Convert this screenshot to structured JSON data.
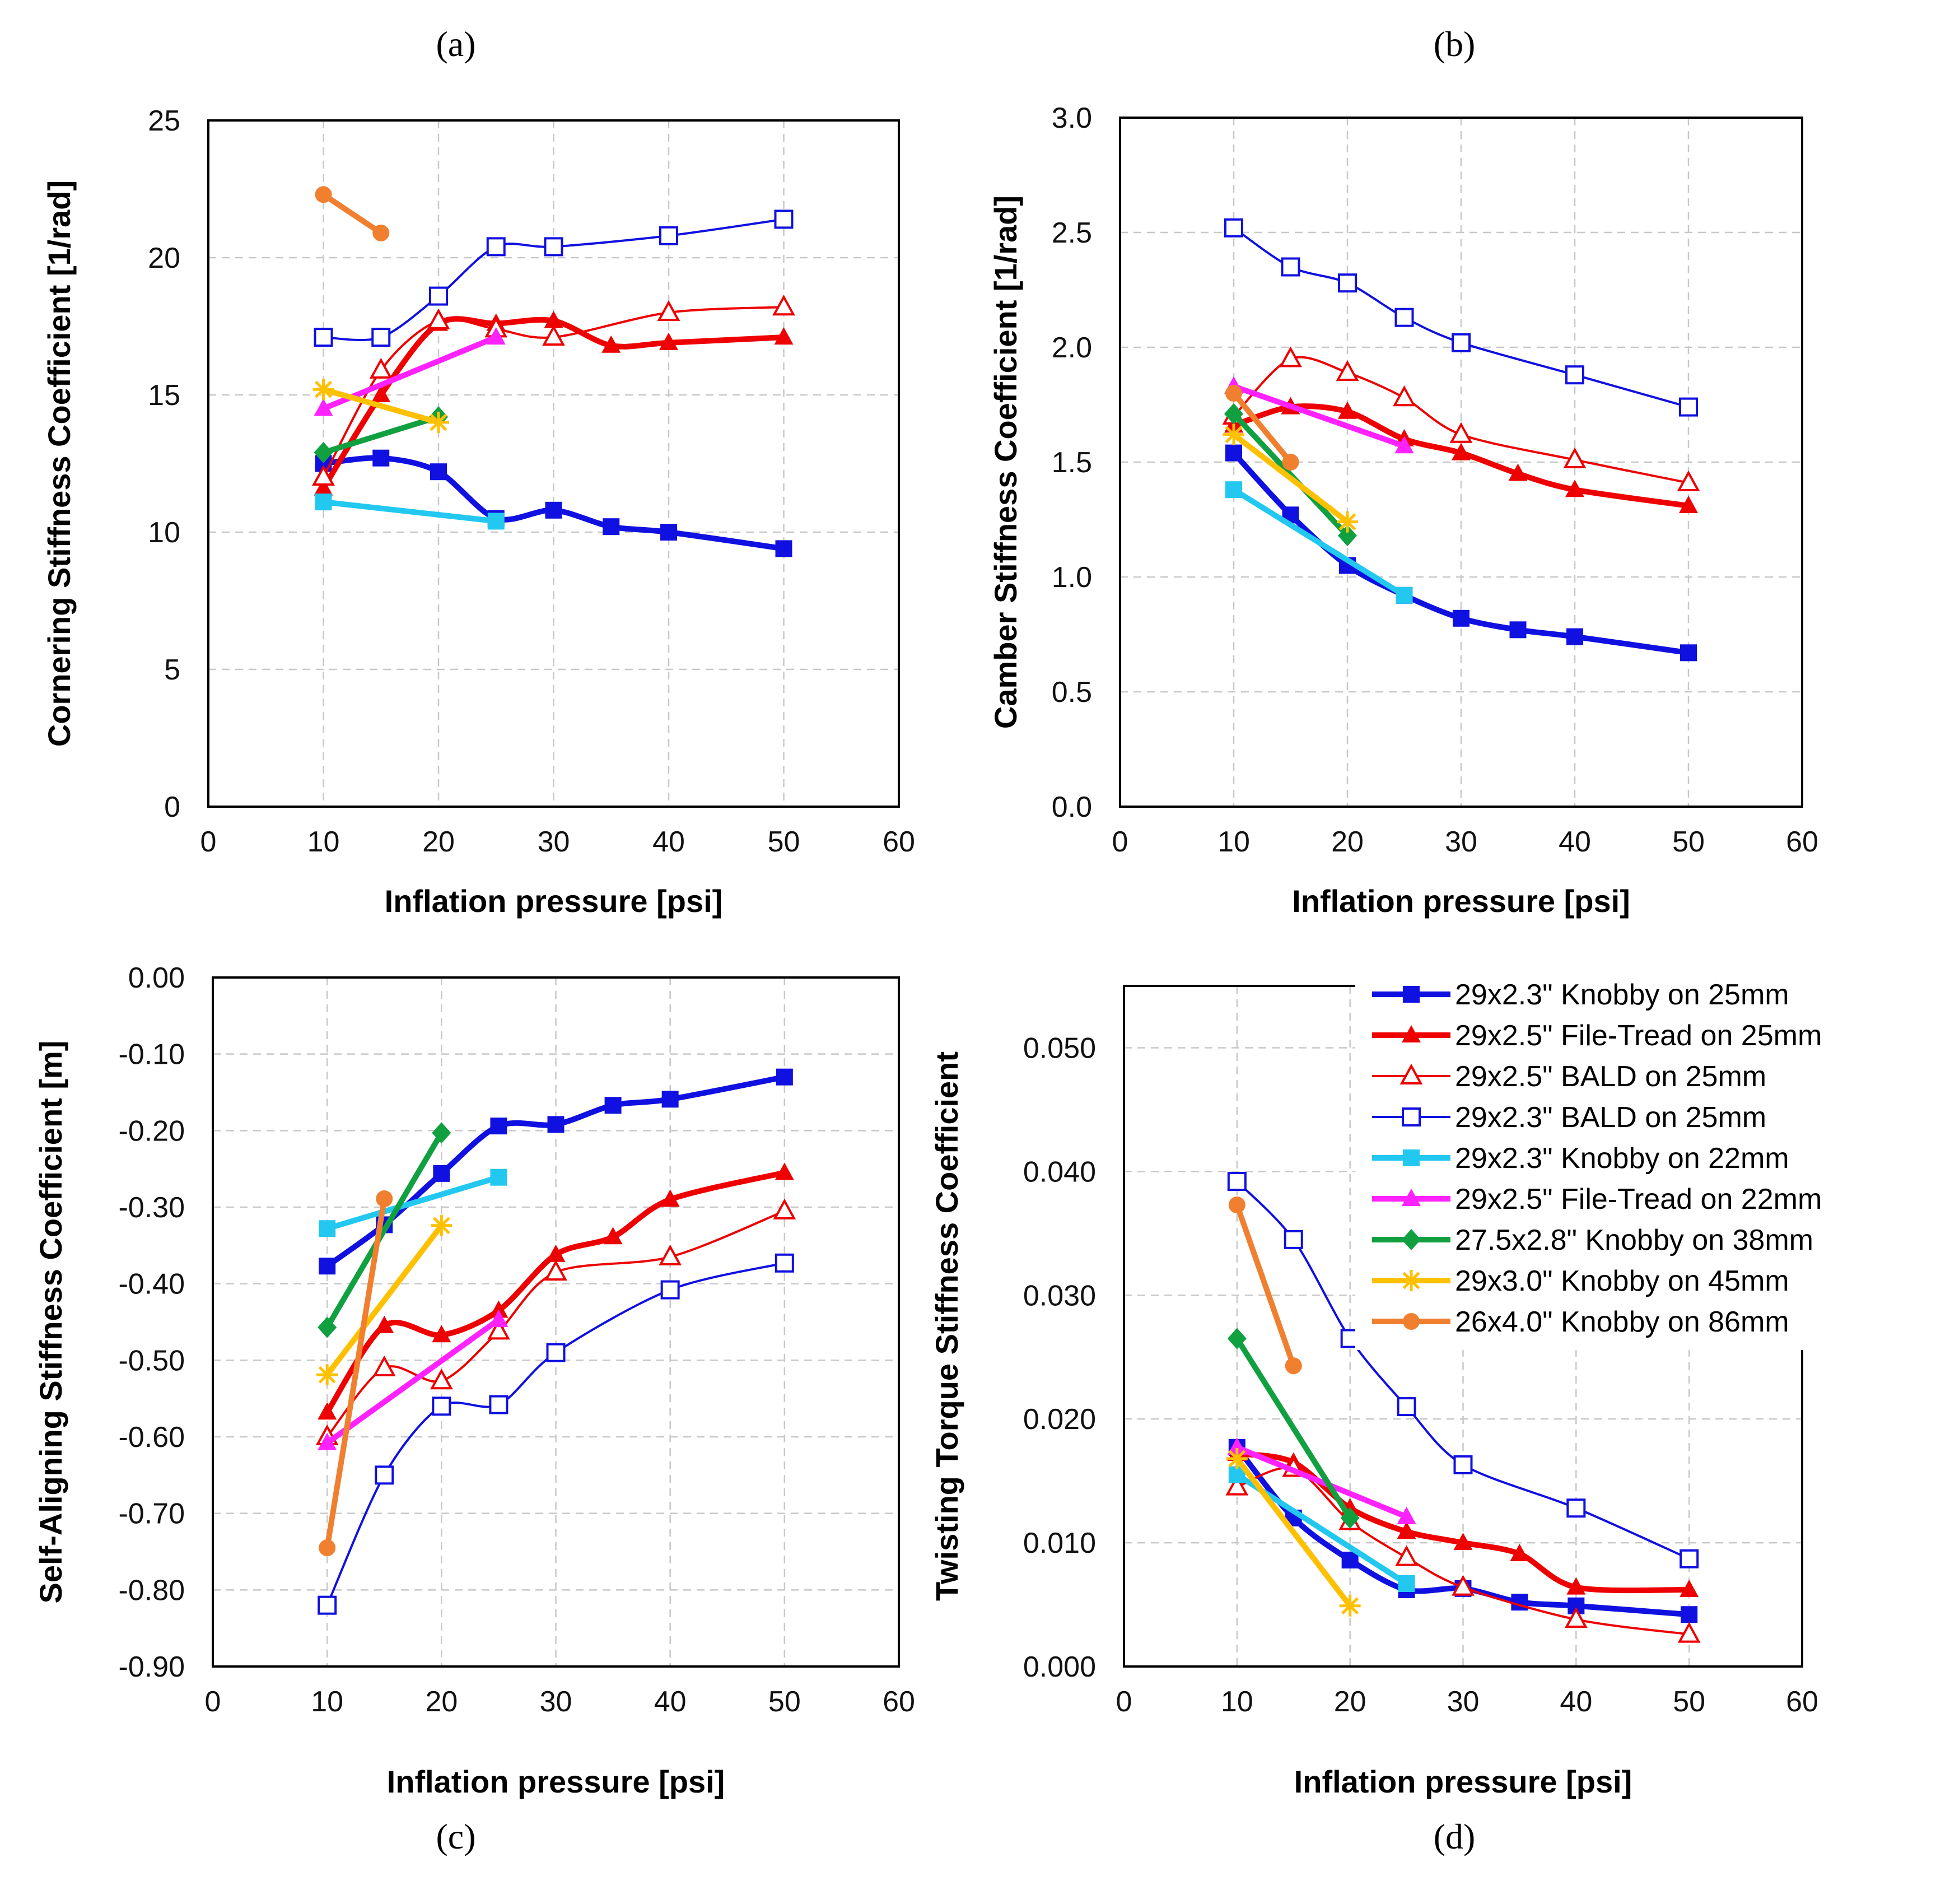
{
  "series_styles": [
    {
      "color": "#1010e0",
      "width": 10,
      "marker": "square-filled"
    },
    {
      "color": "#ee0000",
      "width": 10,
      "marker": "triangle-filled"
    },
    {
      "color": "#ee0000",
      "width": 4,
      "marker": "triangle-open"
    },
    {
      "color": "#1010e0",
      "width": 4,
      "marker": "square-open"
    },
    {
      "color": "#22c8f0",
      "width": 10,
      "marker": "square-filled"
    },
    {
      "color": "#ff22ff",
      "width": 10,
      "marker": "triangle-filled"
    },
    {
      "color": "#10a040",
      "width": 10,
      "marker": "diamond-filled"
    },
    {
      "color": "#ffc000",
      "width": 10,
      "marker": "star"
    },
    {
      "color": "#f07f30",
      "width": 10,
      "marker": "circle-filled"
    }
  ],
  "legend": {
    "panel_index": 3,
    "entries": [
      "29x2.3\" Knobby on 25mm",
      "29x2.5\" File-Tread on 25mm",
      "29x2.5\" BALD on 25mm",
      "29x2.3\" BALD on 25mm",
      "29x2.3\" Knobby on 22mm",
      "29x2.5\" File-Tread on 22mm",
      "27.5x2.8\" Knobby on 38mm",
      "29x3.0\" Knobby on 45mm",
      "26x4.0\" Knobby on 86mm"
    ]
  },
  "chart_data": [
    {
      "type": "line",
      "panel_label": "(a)",
      "xlabel": "Inflation pressure [psi]",
      "ylabel": "Cornering Stiffness Coefficient [1/rad]",
      "xlim": [
        0,
        60
      ],
      "ylim": [
        0,
        25
      ],
      "xticks": [
        0,
        10,
        20,
        30,
        40,
        50,
        60
      ],
      "yticks": [
        0,
        5,
        10,
        15,
        20,
        25
      ],
      "ytick_labels": [
        "0",
        "5",
        "10",
        "15",
        "20",
        "25"
      ],
      "grid": true,
      "series": [
        {
          "name": "29x2.3\" Knobby on 25mm",
          "x": [
            10,
            15,
            20,
            25,
            30,
            35,
            40,
            50
          ],
          "y": [
            12.5,
            12.7,
            12.2,
            10.5,
            10.8,
            10.2,
            10.0,
            9.4
          ]
        },
        {
          "name": "29x2.5\" File-Tread on 25mm",
          "x": [
            10,
            15,
            20,
            25,
            30,
            35,
            40,
            50
          ],
          "y": [
            11.6,
            15.0,
            17.6,
            17.6,
            17.7,
            16.8,
            16.9,
            17.1
          ]
        },
        {
          "name": "29x2.5\" BALD on 25mm",
          "x": [
            10,
            15,
            20,
            25,
            30,
            40,
            50
          ],
          "y": [
            12.0,
            15.9,
            17.7,
            17.4,
            17.1,
            18.0,
            18.2
          ]
        },
        {
          "name": "29x2.3\" BALD on 25mm",
          "x": [
            10,
            15,
            20,
            25,
            30,
            40,
            50
          ],
          "y": [
            17.1,
            17.1,
            18.6,
            20.4,
            20.4,
            20.8,
            21.4
          ]
        },
        {
          "name": "29x2.3\" Knobby on 22mm",
          "x": [
            10,
            25
          ],
          "y": [
            11.1,
            10.4
          ]
        },
        {
          "name": "29x2.5\" File-Tread on 22mm",
          "x": [
            10,
            25
          ],
          "y": [
            14.5,
            17.1
          ]
        },
        {
          "name": "27.5x2.8\" Knobby on 38mm",
          "x": [
            10,
            20
          ],
          "y": [
            12.9,
            14.2
          ]
        },
        {
          "name": "29x3.0\" Knobby on 45mm",
          "x": [
            10,
            20
          ],
          "y": [
            15.2,
            14.0
          ]
        },
        {
          "name": "26x4.0\" Knobby on 86mm",
          "x": [
            10,
            15
          ],
          "y": [
            22.3,
            20.9
          ]
        }
      ]
    },
    {
      "type": "line",
      "panel_label": "(b)",
      "xlabel": "Inflation pressure [psi]",
      "ylabel": "Camber Stiffness Coefficient [1/rad]",
      "xlim": [
        0,
        60
      ],
      "ylim": [
        0,
        3
      ],
      "xticks": [
        0,
        10,
        20,
        30,
        40,
        50,
        60
      ],
      "yticks": [
        0,
        0.5,
        1.0,
        1.5,
        2.0,
        2.5,
        3.0
      ],
      "ytick_labels": [
        "0.0",
        "0.5",
        "1.0",
        "1.5",
        "2.0",
        "2.5",
        "3.0"
      ],
      "grid": true,
      "series": [
        {
          "name": "29x2.3\" Knobby on 25mm",
          "x": [
            10,
            15,
            20,
            25,
            30,
            35,
            40,
            50
          ],
          "y": [
            1.54,
            1.27,
            1.05,
            0.92,
            0.82,
            0.77,
            0.74,
            0.67
          ]
        },
        {
          "name": "29x2.5\" File-Tread on 25mm",
          "x": [
            10,
            15,
            20,
            25,
            30,
            35,
            40,
            50
          ],
          "y": [
            1.66,
            1.74,
            1.72,
            1.6,
            1.54,
            1.45,
            1.38,
            1.31
          ]
        },
        {
          "name": "29x2.5\" BALD on 25mm",
          "x": [
            10,
            15,
            20,
            25,
            30,
            40,
            50
          ],
          "y": [
            1.7,
            1.95,
            1.89,
            1.78,
            1.62,
            1.51,
            1.41
          ]
        },
        {
          "name": "29x2.3\" BALD on 25mm",
          "x": [
            10,
            15,
            20,
            25,
            30,
            40,
            50
          ],
          "y": [
            2.52,
            2.35,
            2.28,
            2.13,
            2.02,
            1.88,
            1.74
          ]
        },
        {
          "name": "29x2.3\" Knobby on 22mm",
          "x": [
            10,
            25
          ],
          "y": [
            1.38,
            0.92
          ]
        },
        {
          "name": "29x2.5\" File-Tread on 22mm",
          "x": [
            10,
            25
          ],
          "y": [
            1.83,
            1.57
          ]
        },
        {
          "name": "27.5x2.8\" Knobby on 38mm",
          "x": [
            10,
            20
          ],
          "y": [
            1.71,
            1.18
          ]
        },
        {
          "name": "29x3.0\" Knobby on 45mm",
          "x": [
            10,
            20
          ],
          "y": [
            1.62,
            1.24
          ]
        },
        {
          "name": "26x4.0\" Knobby on 86mm",
          "x": [
            10,
            15
          ],
          "y": [
            1.8,
            1.5
          ]
        }
      ]
    },
    {
      "type": "line",
      "panel_label": "(c)",
      "xlabel": "Inflation pressure [psi]",
      "ylabel": "Self-Aligning Stiffness Coefficient [m]",
      "xlim": [
        0,
        60
      ],
      "ylim": [
        -0.9,
        0
      ],
      "xticks": [
        0,
        10,
        20,
        30,
        40,
        50,
        60
      ],
      "yticks": [
        -0.9,
        -0.8,
        -0.7,
        -0.6,
        -0.5,
        -0.4,
        -0.3,
        -0.2,
        -0.1,
        0
      ],
      "ytick_labels": [
        "-0.90",
        "-0.80",
        "-0.70",
        "-0.60",
        "-0.50",
        "-0.40",
        "-0.30",
        "-0.20",
        "-0.10",
        "0.00"
      ],
      "grid": true,
      "series": [
        {
          "name": "29x2.3\" Knobby on 25mm",
          "x": [
            10,
            15,
            20,
            25,
            30,
            35,
            40,
            50
          ],
          "y": [
            -0.377,
            -0.323,
            -0.256,
            -0.194,
            -0.192,
            -0.167,
            -0.159,
            -0.13
          ]
        },
        {
          "name": "29x2.5\" File-Tread on 25mm",
          "x": [
            10,
            15,
            20,
            25,
            30,
            35,
            40,
            50
          ],
          "y": [
            -0.568,
            -0.455,
            -0.467,
            -0.435,
            -0.362,
            -0.339,
            -0.29,
            -0.255
          ]
        },
        {
          "name": "29x2.5\" BALD on 25mm",
          "x": [
            10,
            15,
            20,
            25,
            30,
            40,
            50
          ],
          "y": [
            -0.6,
            -0.51,
            -0.527,
            -0.462,
            -0.385,
            -0.365,
            -0.305
          ]
        },
        {
          "name": "29x2.3\" BALD on 25mm",
          "x": [
            10,
            15,
            20,
            25,
            30,
            40,
            50
          ],
          "y": [
            -0.82,
            -0.65,
            -0.56,
            -0.558,
            -0.49,
            -0.408,
            -0.373
          ]
        },
        {
          "name": "29x2.3\" Knobby on 22mm",
          "x": [
            10,
            25
          ],
          "y": [
            -0.328,
            -0.261
          ]
        },
        {
          "name": "29x2.5\" File-Tread on 22mm",
          "x": [
            10,
            25
          ],
          "y": [
            -0.608,
            -0.447
          ]
        },
        {
          "name": "27.5x2.8\" Knobby on 38mm",
          "x": [
            10,
            20
          ],
          "y": [
            -0.457,
            -0.203
          ]
        },
        {
          "name": "29x3.0\" Knobby on 45mm",
          "x": [
            10,
            20
          ],
          "y": [
            -0.519,
            -0.324
          ]
        },
        {
          "name": "26x4.0\" Knobby on 86mm",
          "x": [
            10,
            15
          ],
          "y": [
            -0.745,
            -0.289
          ]
        }
      ]
    },
    {
      "type": "line",
      "panel_label": "(d)",
      "xlabel": "Inflation pressure [psi]",
      "ylabel": "Twisting Torque Stiffness Coefficient",
      "xlim": [
        0,
        60
      ],
      "ylim": [
        0,
        0.055
      ],
      "xticks": [
        0,
        10,
        20,
        30,
        40,
        50,
        60
      ],
      "yticks": [
        0,
        0.01,
        0.02,
        0.03,
        0.04,
        0.05
      ],
      "ytick_labels": [
        "0.000",
        "0.010",
        "0.020",
        "0.030",
        "0.040",
        "0.050"
      ],
      "grid": true,
      "series": [
        {
          "name": "29x2.3\" Knobby on 25mm",
          "x": [
            10,
            15,
            20,
            25,
            30,
            35,
            40,
            50
          ],
          "y": [
            0.0177,
            0.012,
            0.0086,
            0.0062,
            0.0063,
            0.0052,
            0.0049,
            0.0042
          ]
        },
        {
          "name": "29x2.5\" File-Tread on 25mm",
          "x": [
            10,
            15,
            20,
            25,
            30,
            35,
            40,
            50
          ],
          "y": [
            0.0172,
            0.0165,
            0.0128,
            0.0109,
            0.01,
            0.0091,
            0.0064,
            0.0062
          ]
        },
        {
          "name": "29x2.5\" BALD on 25mm",
          "x": [
            10,
            15,
            20,
            25,
            30,
            40,
            50
          ],
          "y": [
            0.0145,
            0.016,
            0.0117,
            0.0088,
            0.0064,
            0.0038,
            0.0026
          ]
        },
        {
          "name": "29x2.3\" BALD on 25mm",
          "x": [
            10,
            15,
            20,
            25,
            30,
            40,
            50
          ],
          "y": [
            0.0392,
            0.0345,
            0.0265,
            0.021,
            0.0163,
            0.0128,
            0.0087
          ]
        },
        {
          "name": "29x2.3\" Knobby on 22mm",
          "x": [
            10,
            25
          ],
          "y": [
            0.0155,
            0.0067
          ]
        },
        {
          "name": "29x2.5\" File-Tread on 22mm",
          "x": [
            10,
            25
          ],
          "y": [
            0.0177,
            0.0121
          ]
        },
        {
          "name": "27.5x2.8\" Knobby on 38mm",
          "x": [
            10,
            20
          ],
          "y": [
            0.0265,
            0.012
          ]
        },
        {
          "name": "29x3.0\" Knobby on 45mm",
          "x": [
            10,
            20
          ],
          "y": [
            0.0168,
            0.0049
          ]
        },
        {
          "name": "26x4.0\" Knobby on 86mm",
          "x": [
            10,
            15
          ],
          "y": [
            0.0373,
            0.0243
          ]
        }
      ]
    }
  ]
}
